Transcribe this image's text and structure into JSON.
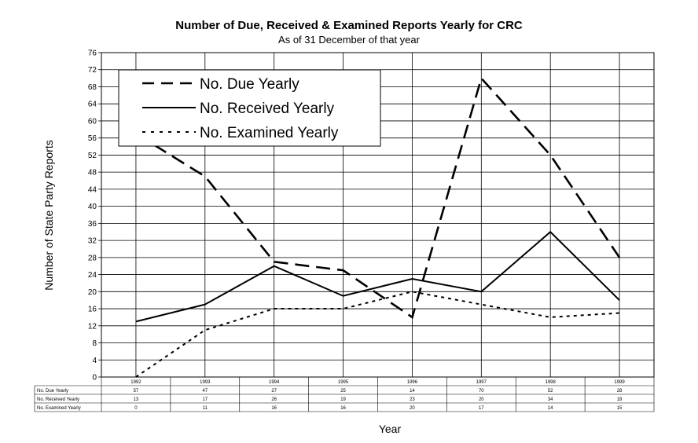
{
  "chart_data": {
    "type": "line",
    "title": "Number of Due, Received & Examined Reports Yearly for CRC",
    "subtitle": "As of 31 December of that year",
    "xlabel": "Year",
    "ylabel": "Number of State Party Reports",
    "ylim": [
      0,
      76
    ],
    "yticks": [
      0,
      4,
      8,
      12,
      16,
      20,
      24,
      28,
      32,
      36,
      40,
      44,
      48,
      52,
      56,
      60,
      64,
      68,
      72,
      76
    ],
    "grid": true,
    "legend_position": "top-left",
    "categories": [
      "1992",
      "1993",
      "1994",
      "1995",
      "1996",
      "1997",
      "1998",
      "1999"
    ],
    "series": [
      {
        "name": "No. Due Yearly",
        "table_label": "No. Due Yearly",
        "style": "dashed",
        "values": [
          57,
          47,
          27,
          25,
          14,
          70,
          52,
          28
        ]
      },
      {
        "name": "No. Received Yearly",
        "table_label": "No. Received Yearly",
        "style": "solid",
        "values": [
          13,
          17,
          26,
          19,
          23,
          20,
          34,
          18
        ]
      },
      {
        "name": "No. Examined Yearly",
        "table_label": "No. Examined Yearly",
        "style": "dotted",
        "values": [
          0,
          11,
          16,
          16,
          20,
          17,
          14,
          15
        ]
      }
    ],
    "colors": {
      "line": "#000000",
      "grid": "#000000",
      "background": "#ffffff"
    }
  }
}
